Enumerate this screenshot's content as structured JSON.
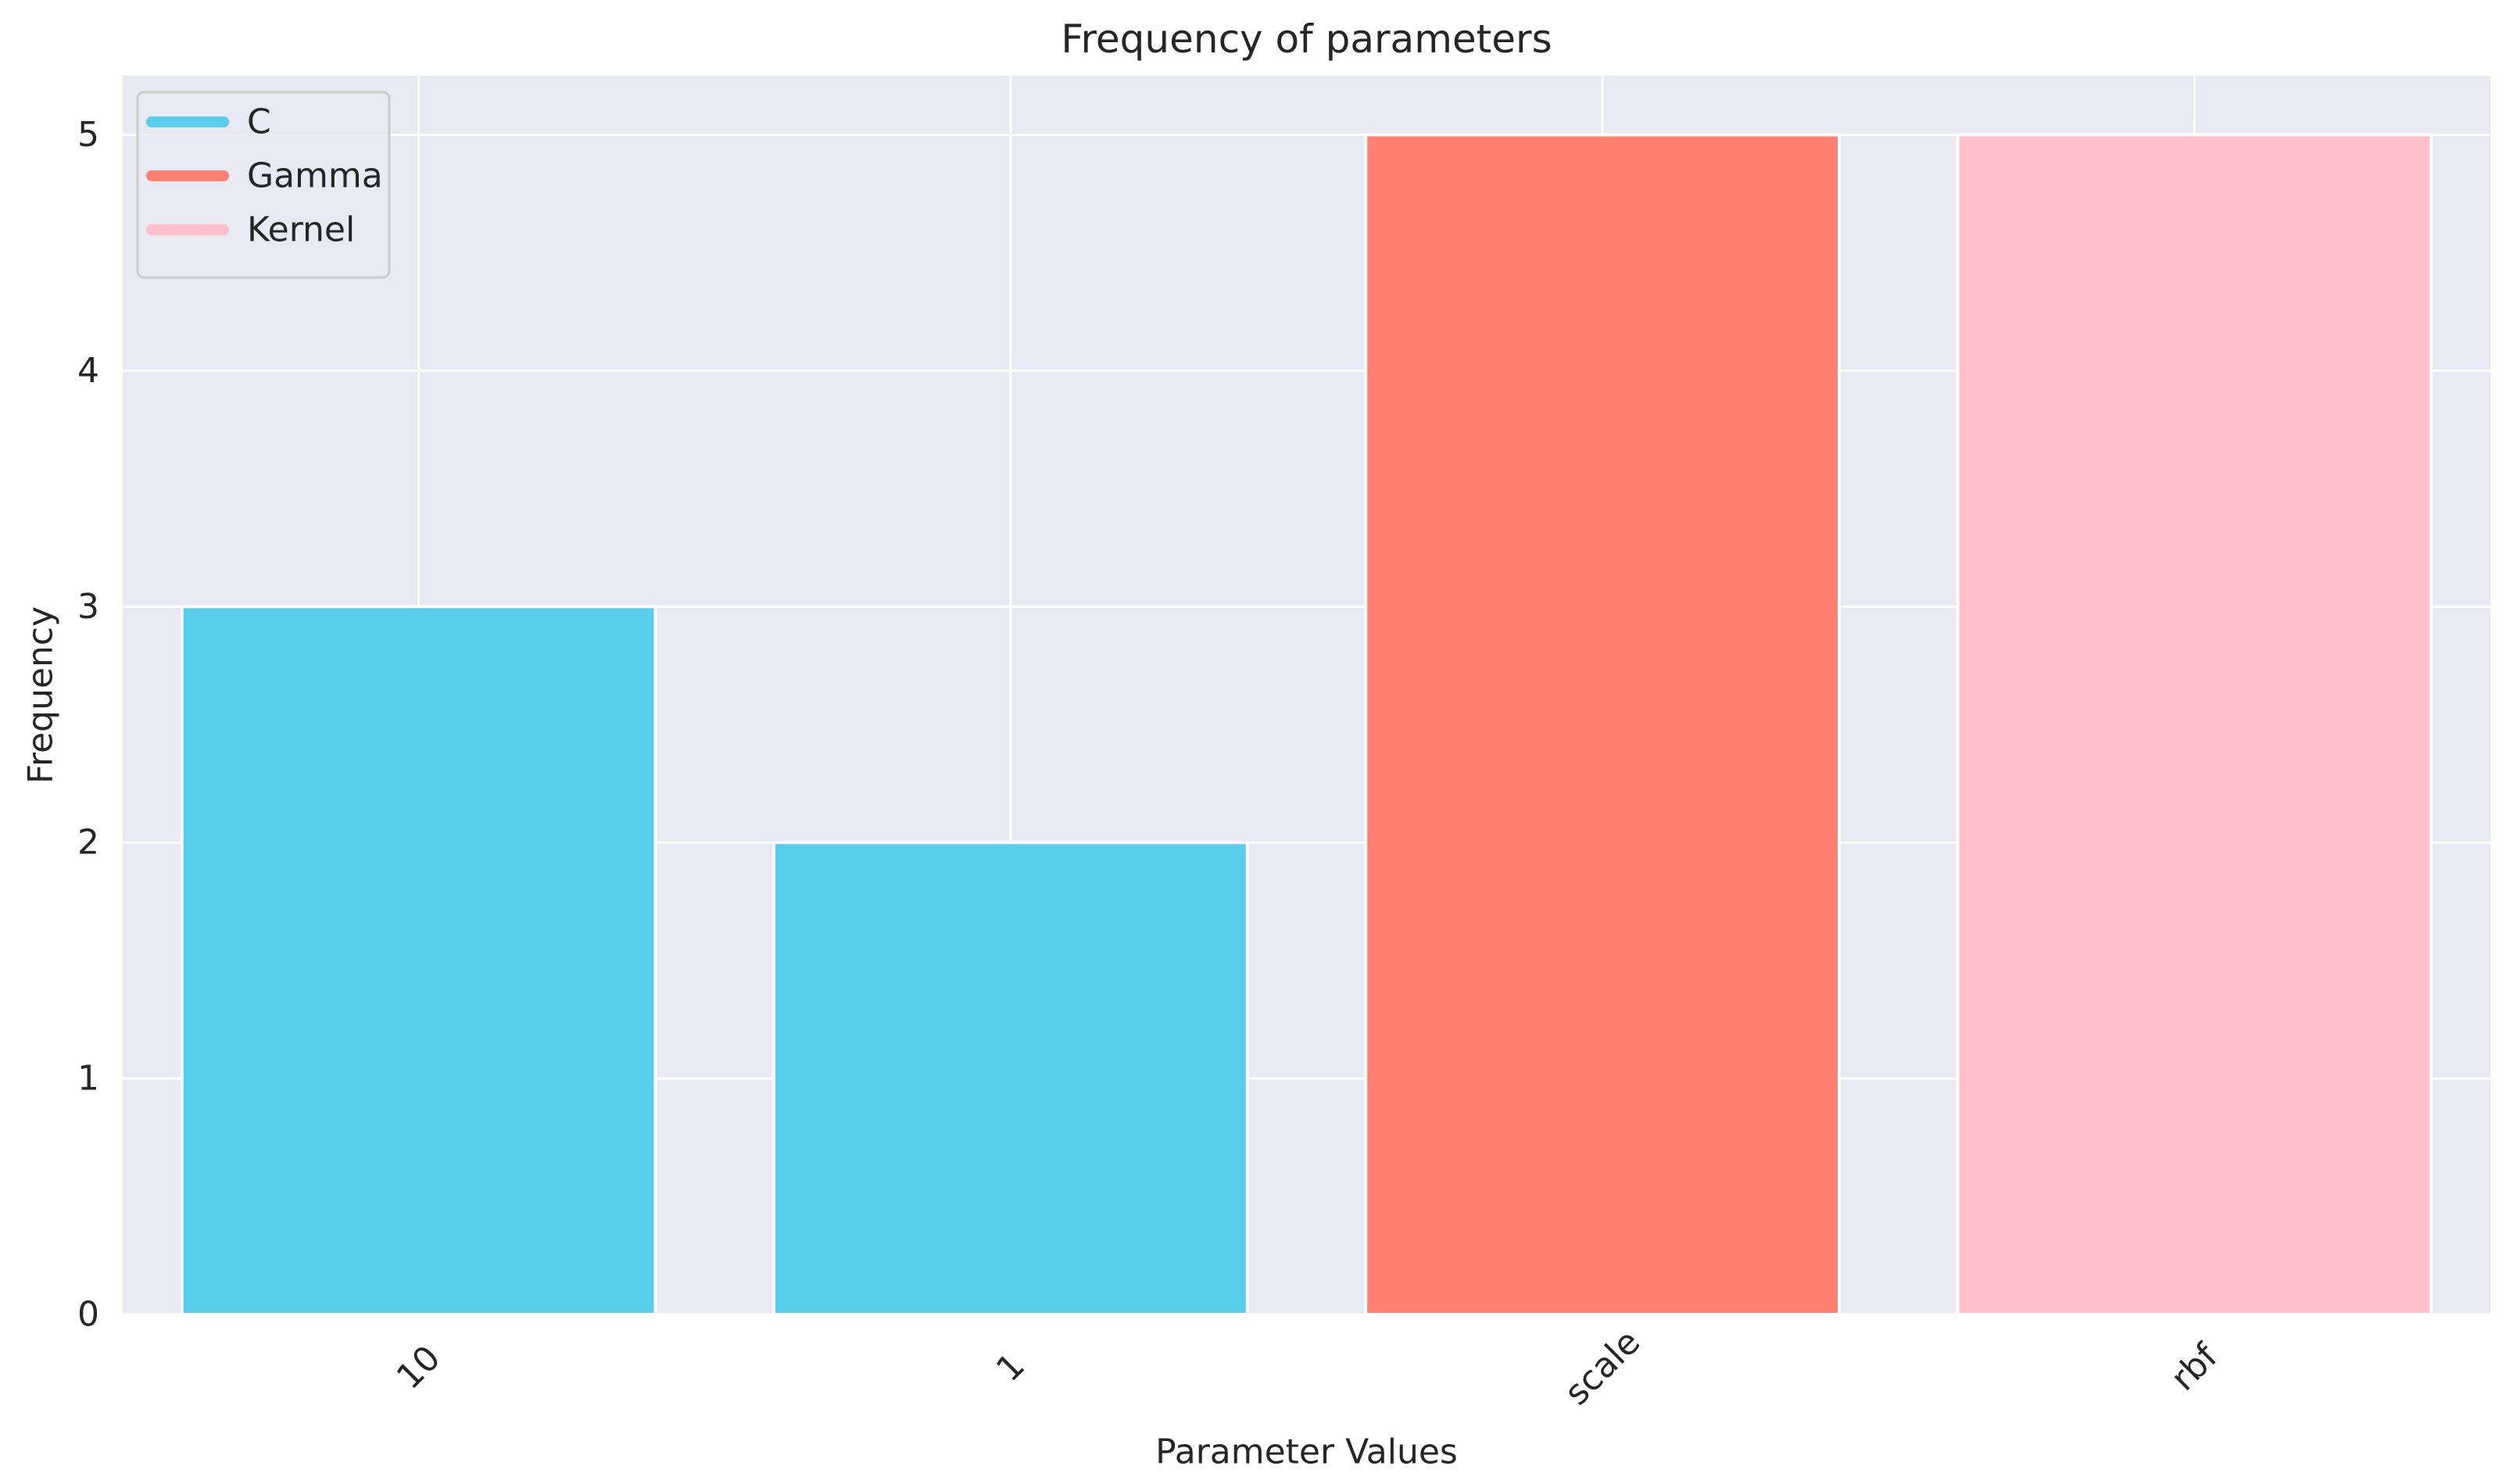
{
  "chart_data": {
    "type": "bar",
    "title": "Frequency of parameters",
    "xlabel": "Parameter Values",
    "ylabel": "Frequency",
    "categories": [
      "10",
      "1",
      "scale",
      "rbf"
    ],
    "values": [
      3,
      2,
      5,
      5
    ],
    "bar_series": [
      "C",
      "C",
      "Gamma",
      "Kernel"
    ],
    "series": [
      {
        "name": "C",
        "color": "#58CEEB"
      },
      {
        "name": "Gamma",
        "color": "#FF8070"
      },
      {
        "name": "Kernel",
        "color": "#FFC0CB"
      }
    ],
    "ylim": [
      0,
      5.25
    ],
    "yticks": [
      0,
      1,
      2,
      3,
      4,
      5
    ],
    "grid": true,
    "legend_position": "upper-left",
    "xtick_rotation": -45,
    "axes_background": "#E8E9F2",
    "grid_color": "#FFFFFF",
    "text_color": "#262626"
  }
}
